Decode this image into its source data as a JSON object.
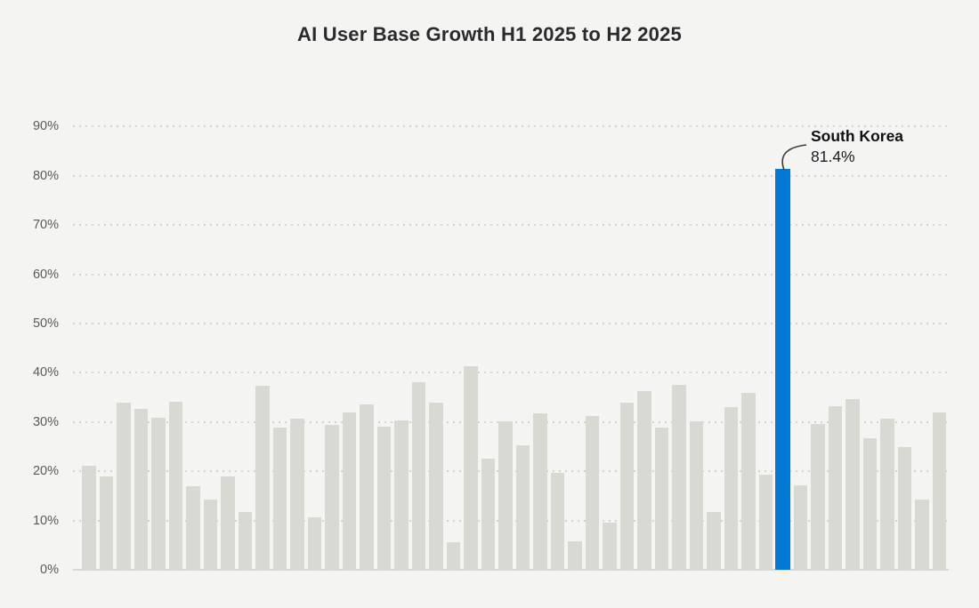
{
  "page": {
    "background": "#f4f4f2"
  },
  "chart_data": {
    "type": "bar",
    "title": "AI User Base Growth H1 2025 to H2 2025",
    "xlabel": "",
    "ylabel": "",
    "ylim": [
      0,
      90
    ],
    "ytick_labels": [
      "0%",
      "10%",
      "20%",
      "30%",
      "40%",
      "50%",
      "60%",
      "70%",
      "80%",
      "90%"
    ],
    "grid": "horizontal-dotted",
    "legend_position": "none",
    "x_axis_labels": "none",
    "bar_count": 50,
    "values": [
      21.2,
      18.9,
      34.0,
      32.6,
      30.9,
      34.1,
      16.9,
      14.2,
      18.9,
      11.7,
      37.4,
      28.8,
      30.6,
      10.6,
      29.4,
      32.0,
      33.5,
      29.0,
      30.3,
      38.1,
      34.0,
      5.6,
      41.4,
      22.6,
      30.1,
      25.2,
      31.8,
      19.6,
      5.7,
      31.3,
      9.6,
      34.0,
      36.3,
      28.8,
      37.6,
      30.2,
      11.7,
      33.0,
      35.9,
      19.4,
      81.4,
      17.1,
      29.6,
      33.3,
      34.7,
      26.7,
      30.6,
      25.0,
      14.2,
      32.0
    ],
    "highlight": {
      "index": 40,
      "label": "South Korea",
      "value": 81.4,
      "value_label": "81.4%",
      "color": "#0078d4"
    },
    "bar_color": "#d9d9d3",
    "colors": {
      "background": "#f4f4f2",
      "grid": "#d3d3ce",
      "axis_line": "#d8d8d3",
      "tick_text": "#5a5a5a",
      "title_text": "#2b2b2b",
      "annotation_text": "#101010",
      "callout_line": "#3a3a3a"
    }
  }
}
